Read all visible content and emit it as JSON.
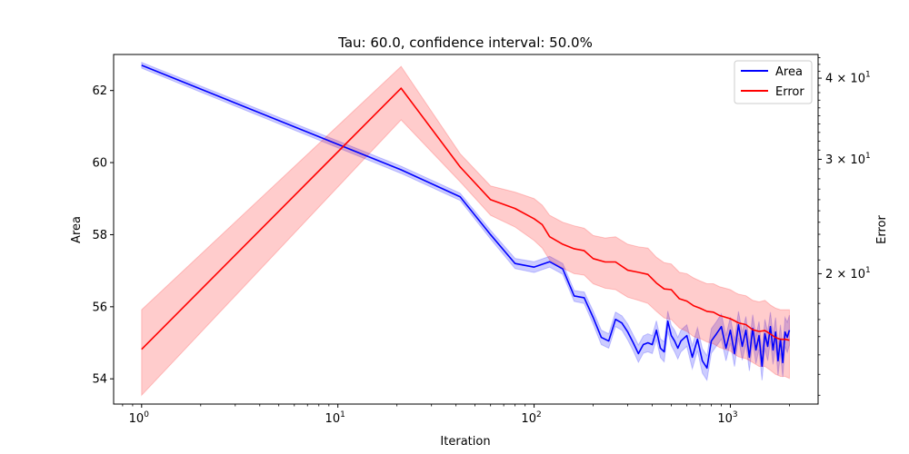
{
  "chart_data": {
    "type": "line",
    "title": "Tau: 60.0, confidence interval: 50.0%",
    "xlabel": "Iteration",
    "ylabel": "Area",
    "y2label": "Error",
    "xscale": "log",
    "xlim": [
      0.72,
      2800
    ],
    "ylim": [
      53.3,
      63.0
    ],
    "y2scale": "log",
    "y2lim": [
      12.6,
      43.5
    ],
    "x_ticks": [
      {
        "value": 1,
        "base": "10",
        "exp": "0"
      },
      {
        "value": 10,
        "base": "10",
        "exp": "1"
      },
      {
        "value": 100,
        "base": "10",
        "exp": "2"
      },
      {
        "value": 1000,
        "base": "10",
        "exp": "3"
      }
    ],
    "y_ticks": [
      {
        "value": 54,
        "label": "54"
      },
      {
        "value": 56,
        "label": "56"
      },
      {
        "value": 58,
        "label": "58"
      },
      {
        "value": 60,
        "label": "60"
      },
      {
        "value": 62,
        "label": "62"
      }
    ],
    "y2_ticks": [
      {
        "value": 20,
        "mant": "2",
        "base": "10",
        "exp": "1"
      },
      {
        "value": 30,
        "mant": "3",
        "base": "10",
        "exp": "1"
      },
      {
        "value": 40,
        "mant": "4",
        "base": "10",
        "exp": "1"
      }
    ],
    "legend_position": "top-right",
    "series": [
      {
        "name": "Area",
        "axis": "left",
        "color": "#0000ff",
        "band_color": "#0000ff",
        "points": [
          [
            1,
            62.7
          ],
          [
            21,
            59.8
          ],
          [
            42,
            59.05
          ],
          [
            60,
            58.0
          ],
          [
            80,
            57.2
          ],
          [
            100,
            57.1
          ],
          [
            120,
            57.25
          ],
          [
            140,
            57.05
          ],
          [
            160,
            56.3
          ],
          [
            180,
            56.25
          ],
          [
            200,
            55.7
          ],
          [
            220,
            55.15
          ],
          [
            240,
            55.05
          ],
          [
            260,
            55.65
          ],
          [
            280,
            55.55
          ],
          [
            300,
            55.3
          ],
          [
            320,
            55.0
          ],
          [
            340,
            54.7
          ],
          [
            360,
            54.95
          ],
          [
            380,
            55.0
          ],
          [
            400,
            54.95
          ],
          [
            420,
            55.35
          ],
          [
            440,
            54.85
          ],
          [
            460,
            54.75
          ],
          [
            480,
            55.6
          ],
          [
            500,
            55.2
          ],
          [
            520,
            55.05
          ],
          [
            540,
            54.85
          ],
          [
            560,
            55.05
          ],
          [
            600,
            55.2
          ],
          [
            640,
            54.6
          ],
          [
            680,
            55.1
          ],
          [
            720,
            54.5
          ],
          [
            760,
            54.3
          ],
          [
            800,
            55.05
          ],
          [
            850,
            55.25
          ],
          [
            900,
            55.45
          ],
          [
            950,
            54.85
          ],
          [
            1000,
            55.35
          ],
          [
            1050,
            54.7
          ],
          [
            1100,
            55.5
          ],
          [
            1150,
            54.9
          ],
          [
            1200,
            55.35
          ],
          [
            1250,
            54.6
          ],
          [
            1300,
            55.4
          ],
          [
            1350,
            54.8
          ],
          [
            1400,
            55.2
          ],
          [
            1450,
            54.35
          ],
          [
            1500,
            55.25
          ],
          [
            1550,
            54.9
          ],
          [
            1600,
            55.45
          ],
          [
            1650,
            54.8
          ],
          [
            1700,
            55.3
          ],
          [
            1750,
            54.5
          ],
          [
            1800,
            55.1
          ],
          [
            1850,
            54.45
          ],
          [
            1900,
            55.3
          ],
          [
            1950,
            55.15
          ],
          [
            2000,
            55.35
          ]
        ],
        "band": [
          0.08,
          0.1,
          0.1,
          0.12,
          0.14,
          0.15,
          0.15,
          0.15,
          0.15,
          0.16,
          0.18,
          0.2,
          0.2,
          0.2,
          0.2,
          0.22,
          0.22,
          0.24,
          0.24,
          0.25,
          0.25,
          0.26,
          0.26,
          0.28,
          0.28,
          0.28,
          0.3,
          0.3,
          0.3,
          0.3,
          0.32,
          0.32,
          0.34,
          0.34,
          0.34,
          0.34,
          0.35,
          0.35,
          0.36,
          0.36,
          0.37,
          0.38,
          0.38,
          0.38,
          0.38,
          0.38,
          0.39,
          0.39,
          0.4,
          0.4,
          0.4,
          0.4,
          0.4,
          0.4,
          0.4,
          0.4,
          0.4,
          0.42,
          0.42
        ]
      },
      {
        "name": "Error",
        "axis": "right",
        "color": "#ff0000",
        "band_color": "#ff0000",
        "points": [
          [
            1,
            15.3
          ],
          [
            21,
            38.6
          ],
          [
            42,
            29.2
          ],
          [
            60,
            26.0
          ],
          [
            80,
            25.2
          ],
          [
            100,
            24.3
          ],
          [
            110,
            23.8
          ],
          [
            120,
            22.8
          ],
          [
            140,
            22.2
          ],
          [
            160,
            21.85
          ],
          [
            180,
            21.7
          ],
          [
            200,
            21.1
          ],
          [
            230,
            20.85
          ],
          [
            260,
            20.85
          ],
          [
            300,
            20.25
          ],
          [
            340,
            20.1
          ],
          [
            380,
            19.95
          ],
          [
            420,
            19.35
          ],
          [
            460,
            18.95
          ],
          [
            500,
            18.9
          ],
          [
            550,
            18.3
          ],
          [
            600,
            18.15
          ],
          [
            650,
            17.85
          ],
          [
            700,
            17.7
          ],
          [
            760,
            17.5
          ],
          [
            820,
            17.45
          ],
          [
            880,
            17.25
          ],
          [
            940,
            17.15
          ],
          [
            1000,
            17.05
          ],
          [
            1060,
            16.9
          ],
          [
            1100,
            16.8
          ],
          [
            1200,
            16.7
          ],
          [
            1300,
            16.4
          ],
          [
            1400,
            16.3
          ],
          [
            1500,
            16.35
          ],
          [
            1600,
            16.15
          ],
          [
            1700,
            15.95
          ],
          [
            1800,
            15.85
          ],
          [
            1900,
            15.85
          ],
          [
            2000,
            15.8
          ]
        ],
        "band_low": [
          13.0,
          34.5,
          27.7,
          24.6,
          23.6,
          22.5,
          21.9,
          21.0,
          20.4,
          20.0,
          19.9,
          19.3,
          19.0,
          18.9,
          18.4,
          18.2,
          18.0,
          17.5,
          17.1,
          17.0,
          16.5,
          16.3,
          16.0,
          15.9,
          15.7,
          15.6,
          15.4,
          15.3,
          15.2,
          15.0,
          14.9,
          14.8,
          14.6,
          14.4,
          14.4,
          14.2,
          14.0,
          13.9,
          13.9,
          13.8
        ],
        "band_high": [
          17.6,
          41.7,
          30.6,
          27.3,
          26.7,
          26.1,
          25.5,
          24.6,
          24.0,
          23.7,
          23.5,
          22.9,
          22.7,
          22.8,
          22.2,
          22.0,
          21.9,
          21.2,
          20.8,
          20.7,
          20.1,
          20.0,
          19.7,
          19.5,
          19.3,
          19.3,
          19.1,
          19.0,
          18.9,
          18.7,
          18.6,
          18.5,
          18.2,
          18.1,
          18.2,
          17.9,
          17.7,
          17.6,
          17.6,
          17.6
        ]
      }
    ]
  }
}
